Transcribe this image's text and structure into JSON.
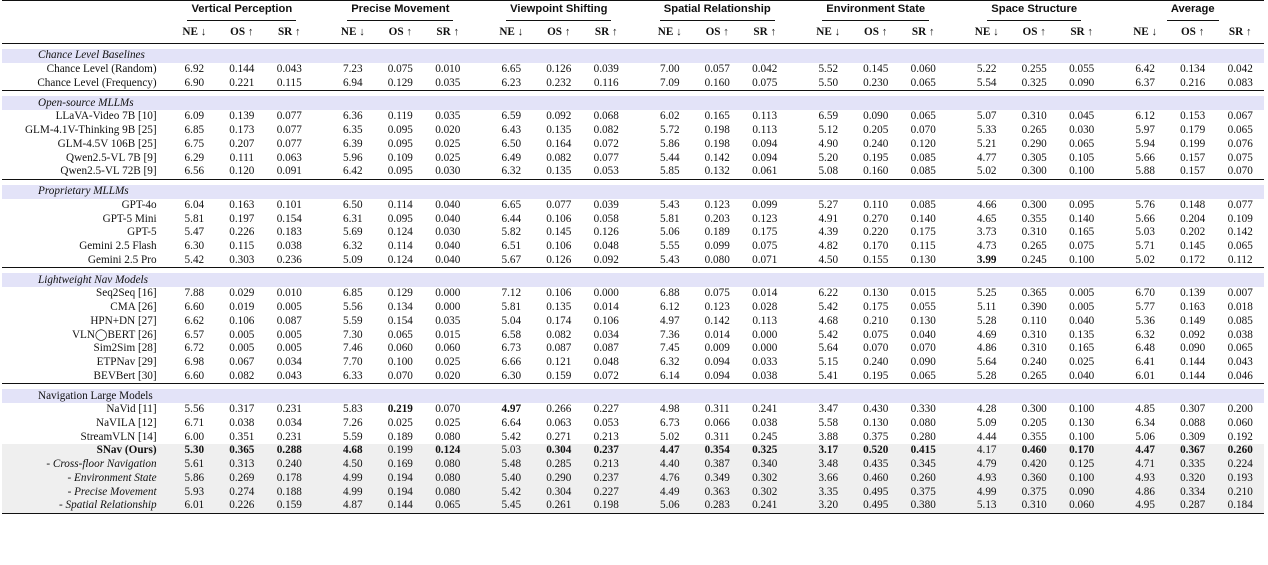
{
  "groups": [
    "Vertical Perception",
    "Precise Movement",
    "Viewpoint Shifting",
    "Spatial Relationship",
    "Environment State",
    "Space Structure",
    "Average"
  ],
  "metrics": [
    "NE ↓",
    "OS ↑",
    "SR ↑"
  ],
  "sections": [
    {
      "title": "Chance Level Baselines",
      "italic": true,
      "rows": [
        {
          "name": "Chance Level (Random)",
          "vals": [
            "6.92",
            "0.144",
            "0.043",
            "7.23",
            "0.075",
            "0.010",
            "6.65",
            "0.126",
            "0.039",
            "7.00",
            "0.057",
            "0.042",
            "5.52",
            "0.145",
            "0.060",
            "5.22",
            "0.255",
            "0.055",
            "6.42",
            "0.134",
            "0.042"
          ]
        },
        {
          "name": "Chance Level (Frequency)",
          "vals": [
            "6.90",
            "0.221",
            "0.115",
            "6.94",
            "0.129",
            "0.035",
            "6.23",
            "0.232",
            "0.116",
            "7.09",
            "0.160",
            "0.075",
            "5.50",
            "0.230",
            "0.065",
            "5.54",
            "0.325",
            "0.090",
            "6.37",
            "0.216",
            "0.083"
          ]
        }
      ]
    },
    {
      "title": "Open-source MLLMs",
      "italic": true,
      "rows": [
        {
          "name": "LLaVA-Video 7B [10]",
          "vals": [
            "6.09",
            "0.139",
            "0.077",
            "6.36",
            "0.119",
            "0.035",
            "6.59",
            "0.092",
            "0.068",
            "6.02",
            "0.165",
            "0.113",
            "6.59",
            "0.090",
            "0.065",
            "5.07",
            "0.310",
            "0.045",
            "6.12",
            "0.153",
            "0.067"
          ]
        },
        {
          "name": "GLM-4.1V-Thinking 9B [25]",
          "vals": [
            "6.85",
            "0.173",
            "0.077",
            "6.35",
            "0.095",
            "0.020",
            "6.43",
            "0.135",
            "0.082",
            "5.72",
            "0.198",
            "0.113",
            "5.12",
            "0.205",
            "0.070",
            "5.33",
            "0.265",
            "0.030",
            "5.97",
            "0.179",
            "0.065"
          ]
        },
        {
          "name": "GLM-4.5V 106B [25]",
          "vals": [
            "6.75",
            "0.207",
            "0.077",
            "6.39",
            "0.095",
            "0.025",
            "6.50",
            "0.164",
            "0.072",
            "5.86",
            "0.198",
            "0.094",
            "4.90",
            "0.240",
            "0.120",
            "5.21",
            "0.290",
            "0.065",
            "5.94",
            "0.199",
            "0.076"
          ]
        },
        {
          "name": "Qwen2.5-VL 7B [9]",
          "vals": [
            "6.29",
            "0.111",
            "0.063",
            "5.96",
            "0.109",
            "0.025",
            "6.49",
            "0.082",
            "0.077",
            "5.44",
            "0.142",
            "0.094",
            "5.20",
            "0.195",
            "0.085",
            "4.77",
            "0.305",
            "0.105",
            "5.66",
            "0.157",
            "0.075"
          ]
        },
        {
          "name": "Qwen2.5-VL 72B [9]",
          "vals": [
            "6.56",
            "0.120",
            "0.091",
            "6.42",
            "0.095",
            "0.030",
            "6.32",
            "0.135",
            "0.053",
            "5.85",
            "0.132",
            "0.061",
            "5.08",
            "0.160",
            "0.085",
            "5.02",
            "0.300",
            "0.100",
            "5.88",
            "0.157",
            "0.070"
          ]
        }
      ]
    },
    {
      "title": "Proprietary MLLMs",
      "italic": true,
      "rows": [
        {
          "name": "GPT-4o",
          "vals": [
            "6.04",
            "0.163",
            "0.101",
            "6.50",
            "0.114",
            "0.040",
            "6.65",
            "0.077",
            "0.039",
            "5.43",
            "0.123",
            "0.099",
            "5.27",
            "0.110",
            "0.085",
            "4.66",
            "0.300",
            "0.095",
            "5.76",
            "0.148",
            "0.077"
          ]
        },
        {
          "name": "GPT-5 Mini",
          "vals": [
            "5.81",
            "0.197",
            "0.154",
            "6.31",
            "0.095",
            "0.040",
            "6.44",
            "0.106",
            "0.058",
            "5.81",
            "0.203",
            "0.123",
            "4.91",
            "0.270",
            "0.140",
            "4.65",
            "0.355",
            "0.140",
            "5.66",
            "0.204",
            "0.109"
          ]
        },
        {
          "name": "GPT-5",
          "vals": [
            "5.47",
            "0.226",
            "0.183",
            "5.69",
            "0.124",
            "0.030",
            "5.82",
            "0.145",
            "0.126",
            "5.06",
            "0.189",
            "0.175",
            "4.39",
            "0.220",
            "0.175",
            "3.73",
            "0.310",
            "0.165",
            "5.03",
            "0.202",
            "0.142"
          ]
        },
        {
          "name": "Gemini 2.5 Flash",
          "vals": [
            "6.30",
            "0.115",
            "0.038",
            "6.32",
            "0.114",
            "0.040",
            "6.51",
            "0.106",
            "0.048",
            "5.55",
            "0.099",
            "0.075",
            "4.82",
            "0.170",
            "0.115",
            "4.73",
            "0.265",
            "0.075",
            "5.71",
            "0.145",
            "0.065"
          ]
        },
        {
          "name": "Gemini 2.5 Pro",
          "vals": [
            "5.42",
            "0.303",
            "0.236",
            "5.09",
            "0.124",
            "0.040",
            "5.67",
            "0.126",
            "0.092",
            "5.43",
            "0.080",
            "0.071",
            "4.50",
            "0.155",
            "0.130",
            "3.99",
            "0.245",
            "0.100",
            "5.02",
            "0.172",
            "0.112"
          ],
          "bold": [
            15
          ]
        }
      ]
    },
    {
      "title": "Lightweight Nav Models",
      "italic": true,
      "rows": [
        {
          "name": "Seq2Seq [16]",
          "vals": [
            "7.88",
            "0.029",
            "0.010",
            "6.85",
            "0.129",
            "0.000",
            "7.12",
            "0.106",
            "0.000",
            "6.88",
            "0.075",
            "0.014",
            "6.22",
            "0.130",
            "0.015",
            "5.25",
            "0.365",
            "0.005",
            "6.70",
            "0.139",
            "0.007"
          ]
        },
        {
          "name": "CMA [26]",
          "vals": [
            "6.60",
            "0.019",
            "0.005",
            "5.56",
            "0.134",
            "0.000",
            "5.81",
            "0.135",
            "0.014",
            "6.12",
            "0.123",
            "0.028",
            "5.42",
            "0.175",
            "0.055",
            "5.11",
            "0.390",
            "0.005",
            "5.77",
            "0.163",
            "0.018"
          ]
        },
        {
          "name": "HPN+DN [27]",
          "vals": [
            "6.62",
            "0.106",
            "0.087",
            "5.59",
            "0.154",
            "0.035",
            "5.04",
            "0.174",
            "0.106",
            "4.97",
            "0.142",
            "0.113",
            "4.68",
            "0.210",
            "0.130",
            "5.28",
            "0.110",
            "0.040",
            "5.36",
            "0.149",
            "0.085"
          ]
        },
        {
          "name": "VLN◯BERT [26]",
          "vals": [
            "6.57",
            "0.005",
            "0.005",
            "7.30",
            "0.065",
            "0.015",
            "6.58",
            "0.082",
            "0.034",
            "7.36",
            "0.014",
            "0.000",
            "5.42",
            "0.075",
            "0.040",
            "4.69",
            "0.310",
            "0.135",
            "6.32",
            "0.092",
            "0.038"
          ]
        },
        {
          "name": "Sim2Sim [28]",
          "vals": [
            "6.72",
            "0.005",
            "0.005",
            "7.46",
            "0.060",
            "0.060",
            "6.73",
            "0.087",
            "0.087",
            "7.45",
            "0.009",
            "0.000",
            "5.64",
            "0.070",
            "0.070",
            "4.86",
            "0.310",
            "0.165",
            "6.48",
            "0.090",
            "0.065"
          ]
        },
        {
          "name": "ETPNav [29]",
          "vals": [
            "6.98",
            "0.067",
            "0.034",
            "7.70",
            "0.100",
            "0.025",
            "6.66",
            "0.121",
            "0.048",
            "6.32",
            "0.094",
            "0.033",
            "5.15",
            "0.240",
            "0.090",
            "5.64",
            "0.240",
            "0.025",
            "6.41",
            "0.144",
            "0.043"
          ]
        },
        {
          "name": "BEVBert [30]",
          "vals": [
            "6.60",
            "0.082",
            "0.043",
            "6.33",
            "0.070",
            "0.020",
            "6.30",
            "0.159",
            "0.072",
            "6.14",
            "0.094",
            "0.038",
            "5.41",
            "0.195",
            "0.065",
            "5.28",
            "0.265",
            "0.040",
            "6.01",
            "0.144",
            "0.046"
          ]
        }
      ]
    },
    {
      "title": "Navigation Large Models",
      "italic": false,
      "rows": [
        {
          "name": "NaVid [11]",
          "vals": [
            "5.56",
            "0.317",
            "0.231",
            "5.83",
            "0.219",
            "0.070",
            "4.97",
            "0.266",
            "0.227",
            "4.98",
            "0.311",
            "0.241",
            "3.47",
            "0.430",
            "0.330",
            "4.28",
            "0.300",
            "0.100",
            "4.85",
            "0.307",
            "0.200"
          ],
          "bold": [
            4,
            6
          ]
        },
        {
          "name": "NaVILA [12]",
          "vals": [
            "6.71",
            "0.038",
            "0.034",
            "7.26",
            "0.025",
            "0.025",
            "6.64",
            "0.063",
            "0.053",
            "6.73",
            "0.066",
            "0.038",
            "5.58",
            "0.130",
            "0.080",
            "5.09",
            "0.205",
            "0.130",
            "6.34",
            "0.088",
            "0.060"
          ]
        },
        {
          "name": "StreamVLN [14]",
          "vals": [
            "6.00",
            "0.351",
            "0.231",
            "5.59",
            "0.189",
            "0.080",
            "5.42",
            "0.271",
            "0.213",
            "5.02",
            "0.311",
            "0.245",
            "3.88",
            "0.375",
            "0.280",
            "4.44",
            "0.355",
            "0.100",
            "5.06",
            "0.309",
            "0.192"
          ]
        },
        {
          "name": "SNav (Ours)",
          "ours": true,
          "vals": [
            "5.30",
            "0.365",
            "0.288",
            "4.68",
            "0.199",
            "0.124",
            "5.03",
            "0.304",
            "0.237",
            "4.47",
            "0.354",
            "0.325",
            "3.17",
            "0.520",
            "0.415",
            "4.17",
            "0.460",
            "0.170",
            "4.47",
            "0.367",
            "0.260"
          ],
          "bold": [
            0,
            1,
            2,
            3,
            5,
            7,
            8,
            9,
            10,
            11,
            12,
            13,
            14,
            16,
            17,
            18,
            19,
            20
          ]
        },
        {
          "name": "- Cross-floor Navigation",
          "abl": true,
          "vals": [
            "5.61",
            "0.313",
            "0.240",
            "4.50",
            "0.169",
            "0.080",
            "5.48",
            "0.285",
            "0.213",
            "4.40",
            "0.387",
            "0.340",
            "3.48",
            "0.435",
            "0.345",
            "4.79",
            "0.420",
            "0.125",
            "4.71",
            "0.335",
            "0.224"
          ]
        },
        {
          "name": "- Environment State",
          "abl": true,
          "vals": [
            "5.86",
            "0.269",
            "0.178",
            "4.99",
            "0.194",
            "0.080",
            "5.40",
            "0.290",
            "0.237",
            "4.76",
            "0.349",
            "0.302",
            "3.66",
            "0.460",
            "0.260",
            "4.93",
            "0.360",
            "0.100",
            "4.93",
            "0.320",
            "0.193"
          ]
        },
        {
          "name": "- Precise Movement",
          "abl": true,
          "vals": [
            "5.93",
            "0.274",
            "0.188",
            "4.99",
            "0.194",
            "0.080",
            "5.42",
            "0.304",
            "0.227",
            "4.49",
            "0.363",
            "0.302",
            "3.35",
            "0.495",
            "0.375",
            "4.99",
            "0.375",
            "0.090",
            "4.86",
            "0.334",
            "0.210"
          ]
        },
        {
          "name": "- Spatial Relationship",
          "abl": true,
          "vals": [
            "6.01",
            "0.226",
            "0.159",
            "4.87",
            "0.144",
            "0.065",
            "5.45",
            "0.261",
            "0.198",
            "5.06",
            "0.283",
            "0.241",
            "3.20",
            "0.495",
            "0.380",
            "5.13",
            "0.310",
            "0.060",
            "4.95",
            "0.287",
            "0.184"
          ]
        }
      ]
    }
  ]
}
